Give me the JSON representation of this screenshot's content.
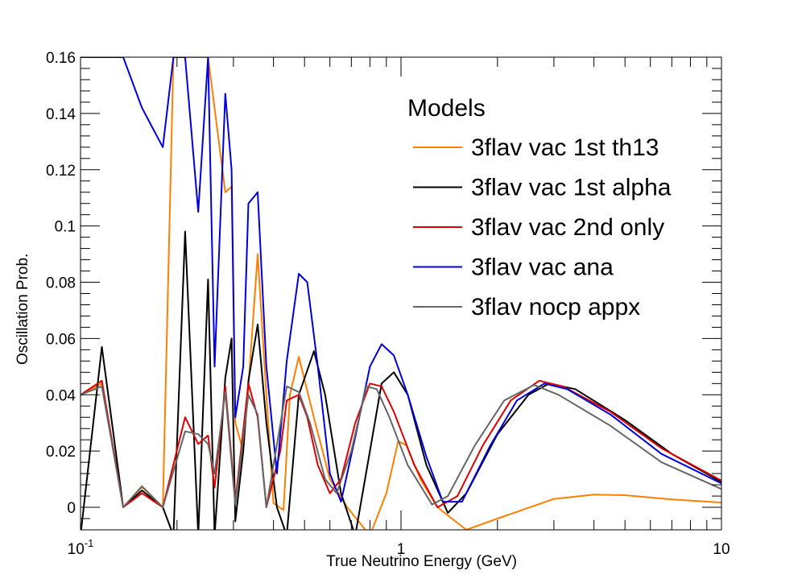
{
  "chart_data": {
    "type": "line",
    "xlabel": "True Neutrino Energy (GeV)",
    "ylabel": "Oscillation Prob.",
    "xscale": "log",
    "xlim": [
      0.1,
      10
    ],
    "ylim": [
      -0.008,
      0.16
    ],
    "x_ticks": [
      {
        "value": 0.1,
        "base": "10",
        "exp": "-1"
      },
      {
        "value": 1,
        "base": "1",
        "exp": ""
      },
      {
        "value": 10,
        "base": "10",
        "exp": ""
      }
    ],
    "y_ticks": [
      {
        "value": 0,
        "label": "0"
      },
      {
        "value": 0.02,
        "label": "0.02"
      },
      {
        "value": 0.04,
        "label": "0.04"
      },
      {
        "value": 0.06,
        "label": "0.06"
      },
      {
        "value": 0.08,
        "label": "0.08"
      },
      {
        "value": 0.1,
        "label": "0.1"
      },
      {
        "value": 0.12,
        "label": "0.12"
      },
      {
        "value": 0.14,
        "label": "0.14"
      },
      {
        "value": 0.16,
        "label": "0.16"
      }
    ],
    "grid": false,
    "legend_title": "Models",
    "legend_position": "top-right",
    "series": [
      {
        "name": "3flav vac 1st th13",
        "color": "#ff7f00",
        "points": [
          [
            0.1,
            0.04
          ],
          [
            0.1166,
            0.044
          ],
          [
            0.1359,
            0.0
          ],
          [
            0.1555,
            0.0072
          ],
          [
            0.1806,
            0.0
          ],
          [
            0.195,
            0.16
          ],
          [
            0.212,
            0.16
          ],
          [
            0.233,
            0.16
          ],
          [
            0.25,
            0.16
          ],
          [
            0.283,
            0.112
          ],
          [
            0.296,
            0.114
          ],
          [
            0.304,
            0.03
          ],
          [
            0.322,
            0.02
          ],
          [
            0.334,
            0.043
          ],
          [
            0.357,
            0.09
          ],
          [
            0.38,
            0.04
          ],
          [
            0.4,
            0.0015
          ],
          [
            0.43,
            -0.001
          ],
          [
            0.45,
            0.04
          ],
          [
            0.48,
            0.0535
          ],
          [
            0.54,
            0.03
          ],
          [
            0.6,
            0.01
          ],
          [
            0.68,
            0.0
          ],
          [
            0.8,
            -0.01
          ],
          [
            0.9,
            0.005
          ],
          [
            0.98,
            0.0235
          ],
          [
            1.04,
            0.022
          ],
          [
            1.15,
            0.01
          ],
          [
            1.3,
            0.0
          ],
          [
            1.6,
            -0.008
          ],
          [
            2.0,
            -0.004
          ],
          [
            3.0,
            0.003
          ],
          [
            4.0,
            0.0045
          ],
          [
            5.0,
            0.0043
          ],
          [
            7.0,
            0.0028
          ],
          [
            10.0,
            0.0017
          ]
        ]
      },
      {
        "name": "3flav vac 1st alpha",
        "color": "#000000",
        "points": [
          [
            0.1,
            -0.01
          ],
          [
            0.1166,
            0.057
          ],
          [
            0.1359,
            0.0
          ],
          [
            0.1555,
            0.006
          ],
          [
            0.1806,
            0.0
          ],
          [
            0.195,
            -0.01
          ],
          [
            0.212,
            0.098
          ],
          [
            0.233,
            -0.01
          ],
          [
            0.25,
            0.081
          ],
          [
            0.262,
            -0.01
          ],
          [
            0.283,
            0.046
          ],
          [
            0.296,
            0.06
          ],
          [
            0.304,
            -0.005
          ],
          [
            0.322,
            0.02
          ],
          [
            0.334,
            0.045
          ],
          [
            0.357,
            0.065
          ],
          [
            0.38,
            0.03
          ],
          [
            0.41,
            0.0
          ],
          [
            0.44,
            -0.01
          ],
          [
            0.48,
            0.04
          ],
          [
            0.535,
            0.0555
          ],
          [
            0.58,
            0.04
          ],
          [
            0.65,
            0.005
          ],
          [
            0.72,
            -0.01
          ],
          [
            0.8,
            0.02
          ],
          [
            0.87,
            0.044
          ],
          [
            0.95,
            0.048
          ],
          [
            1.05,
            0.04
          ],
          [
            1.2,
            0.015
          ],
          [
            1.4,
            -0.002
          ],
          [
            1.6,
            0.005
          ],
          [
            2.0,
            0.026
          ],
          [
            2.5,
            0.04
          ],
          [
            2.9,
            0.044
          ],
          [
            3.5,
            0.042
          ],
          [
            5.0,
            0.031
          ],
          [
            7.0,
            0.019
          ],
          [
            10.0,
            0.009
          ]
        ]
      },
      {
        "name": "3flav vac 2nd only",
        "color": "#e00000",
        "points": [
          [
            0.1,
            0.04
          ],
          [
            0.1166,
            0.045
          ],
          [
            0.1359,
            0.0
          ],
          [
            0.1555,
            0.005
          ],
          [
            0.1806,
            0.0
          ],
          [
            0.212,
            0.032
          ],
          [
            0.233,
            0.0225
          ],
          [
            0.25,
            0.0255
          ],
          [
            0.262,
            0.007
          ],
          [
            0.283,
            0.043
          ],
          [
            0.304,
            0.002
          ],
          [
            0.334,
            0.044
          ],
          [
            0.357,
            0.032
          ],
          [
            0.38,
            0.0
          ],
          [
            0.42,
            0.02
          ],
          [
            0.44,
            0.038
          ],
          [
            0.48,
            0.04
          ],
          [
            0.51,
            0.032
          ],
          [
            0.55,
            0.015
          ],
          [
            0.6,
            0.005
          ],
          [
            0.65,
            0.01
          ],
          [
            0.72,
            0.03
          ],
          [
            0.8,
            0.044
          ],
          [
            0.87,
            0.043
          ],
          [
            0.95,
            0.034
          ],
          [
            1.1,
            0.015
          ],
          [
            1.3,
            0.0
          ],
          [
            1.5,
            0.004
          ],
          [
            1.8,
            0.022
          ],
          [
            2.2,
            0.038
          ],
          [
            2.7,
            0.045
          ],
          [
            3.2,
            0.043
          ],
          [
            4.5,
            0.034
          ],
          [
            6.5,
            0.021
          ],
          [
            10.0,
            0.0095
          ]
        ]
      },
      {
        "name": "3flav vac ana",
        "color": "#0000dd",
        "points": [
          [
            0.1,
            0.16
          ],
          [
            0.1359,
            0.16
          ],
          [
            0.1555,
            0.142
          ],
          [
            0.1806,
            0.128
          ],
          [
            0.195,
            0.16
          ],
          [
            0.212,
            0.16
          ],
          [
            0.233,
            0.105
          ],
          [
            0.25,
            0.16
          ],
          [
            0.262,
            0.05
          ],
          [
            0.283,
            0.147
          ],
          [
            0.296,
            0.12
          ],
          [
            0.304,
            0.032
          ],
          [
            0.322,
            0.05
          ],
          [
            0.334,
            0.108
          ],
          [
            0.357,
            0.112
          ],
          [
            0.38,
            0.05
          ],
          [
            0.41,
            0.012
          ],
          [
            0.44,
            0.052
          ],
          [
            0.48,
            0.083
          ],
          [
            0.51,
            0.08
          ],
          [
            0.55,
            0.05
          ],
          [
            0.6,
            0.012
          ],
          [
            0.65,
            0.002
          ],
          [
            0.72,
            0.025
          ],
          [
            0.8,
            0.05
          ],
          [
            0.87,
            0.058
          ],
          [
            0.95,
            0.054
          ],
          [
            1.05,
            0.04
          ],
          [
            1.2,
            0.018
          ],
          [
            1.35,
            0.002
          ],
          [
            1.55,
            0.002
          ],
          [
            1.9,
            0.022
          ],
          [
            2.3,
            0.038
          ],
          [
            2.8,
            0.044
          ],
          [
            3.3,
            0.042
          ],
          [
            4.5,
            0.033
          ],
          [
            6.5,
            0.019
          ],
          [
            10.0,
            0.0085
          ]
        ]
      },
      {
        "name": "3flav nocp appx",
        "color": "#666666",
        "points": [
          [
            0.1,
            0.04
          ],
          [
            0.1166,
            0.043
          ],
          [
            0.1359,
            0.0
          ],
          [
            0.1555,
            0.0075
          ],
          [
            0.1806,
            0.0
          ],
          [
            0.212,
            0.027
          ],
          [
            0.233,
            0.026
          ],
          [
            0.25,
            0.0225
          ],
          [
            0.262,
            0.012
          ],
          [
            0.283,
            0.041
          ],
          [
            0.304,
            0.001
          ],
          [
            0.334,
            0.04
          ],
          [
            0.357,
            0.033
          ],
          [
            0.38,
            0.0
          ],
          [
            0.44,
            0.043
          ],
          [
            0.48,
            0.041
          ],
          [
            0.52,
            0.03
          ],
          [
            0.58,
            0.01
          ],
          [
            0.63,
            0.005
          ],
          [
            0.7,
            0.02
          ],
          [
            0.78,
            0.043
          ],
          [
            0.84,
            0.042
          ],
          [
            0.92,
            0.032
          ],
          [
            1.05,
            0.015
          ],
          [
            1.25,
            0.001
          ],
          [
            1.4,
            0.004
          ],
          [
            1.7,
            0.022
          ],
          [
            2.1,
            0.038
          ],
          [
            2.6,
            0.0435
          ],
          [
            3.1,
            0.04
          ],
          [
            4.5,
            0.029
          ],
          [
            6.5,
            0.016
          ],
          [
            10.0,
            0.0065
          ]
        ]
      }
    ]
  }
}
